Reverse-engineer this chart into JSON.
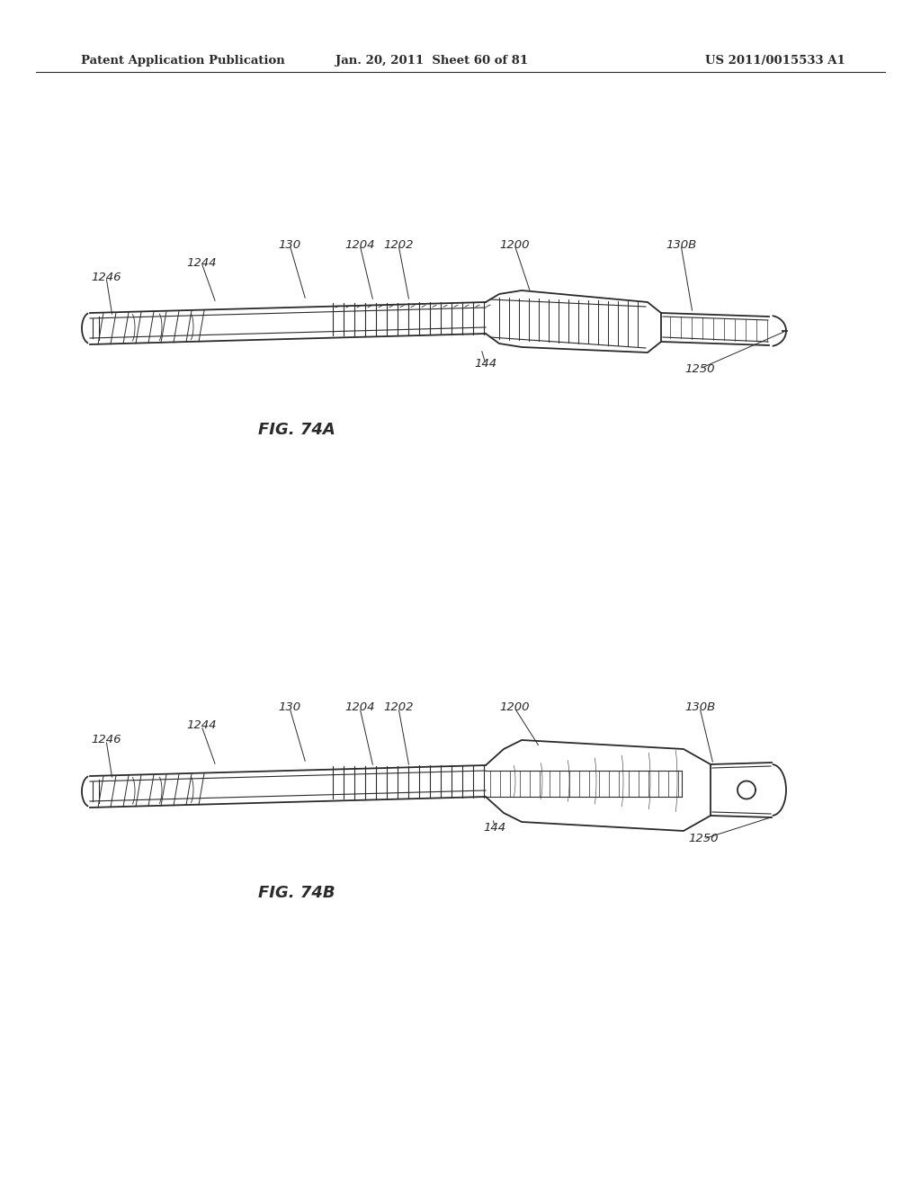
{
  "background_color": "#ffffff",
  "header_left": "Patent Application Publication",
  "header_center": "Jan. 20, 2011  Sheet 60 of 81",
  "header_right": "US 2011/0015533 A1",
  "fig_a_label": "FIG. 74A",
  "fig_b_label": "FIG. 74B",
  "line_color": "#2a2a2a",
  "text_color": "#2a2a2a",
  "header_fontsize": 9.5,
  "label_fontsize": 9.5,
  "fig_label_fontsize": 13
}
